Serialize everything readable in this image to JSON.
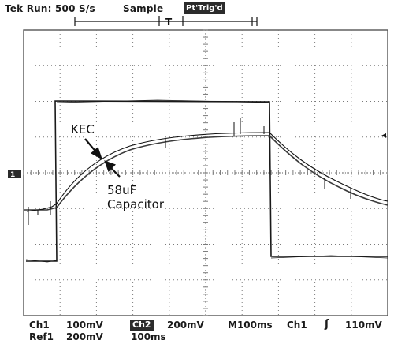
{
  "header": {
    "run_status": "Tek Run: 500 S/s",
    "acq_mode": "Sample",
    "trig_status": "Pt'Trig'd",
    "trigger_marker": "T"
  },
  "markers": {
    "ch1_ground": "1",
    "ch1_trigger_level": "◂"
  },
  "annotations": {
    "kec_label": "KEC",
    "cap_label_line1": "58uF",
    "cap_label_line2": "Capacitor"
  },
  "footer": {
    "ch1_label": "Ch1",
    "ch1_scale": "100mV",
    "ch2_label": "Ch2",
    "ch2_scale": "200mV",
    "timebase": "M100ms",
    "trig_source": "Ch1",
    "trig_slope": "ʃ",
    "trig_level": "110mV",
    "ref1_label": "Ref1",
    "ref1_scale": "200mV",
    "ref1_time": "100ms"
  },
  "colors": {
    "trace": "#1a1a1a",
    "grid": "#7a7a7a",
    "background": "#ffffff"
  }
}
